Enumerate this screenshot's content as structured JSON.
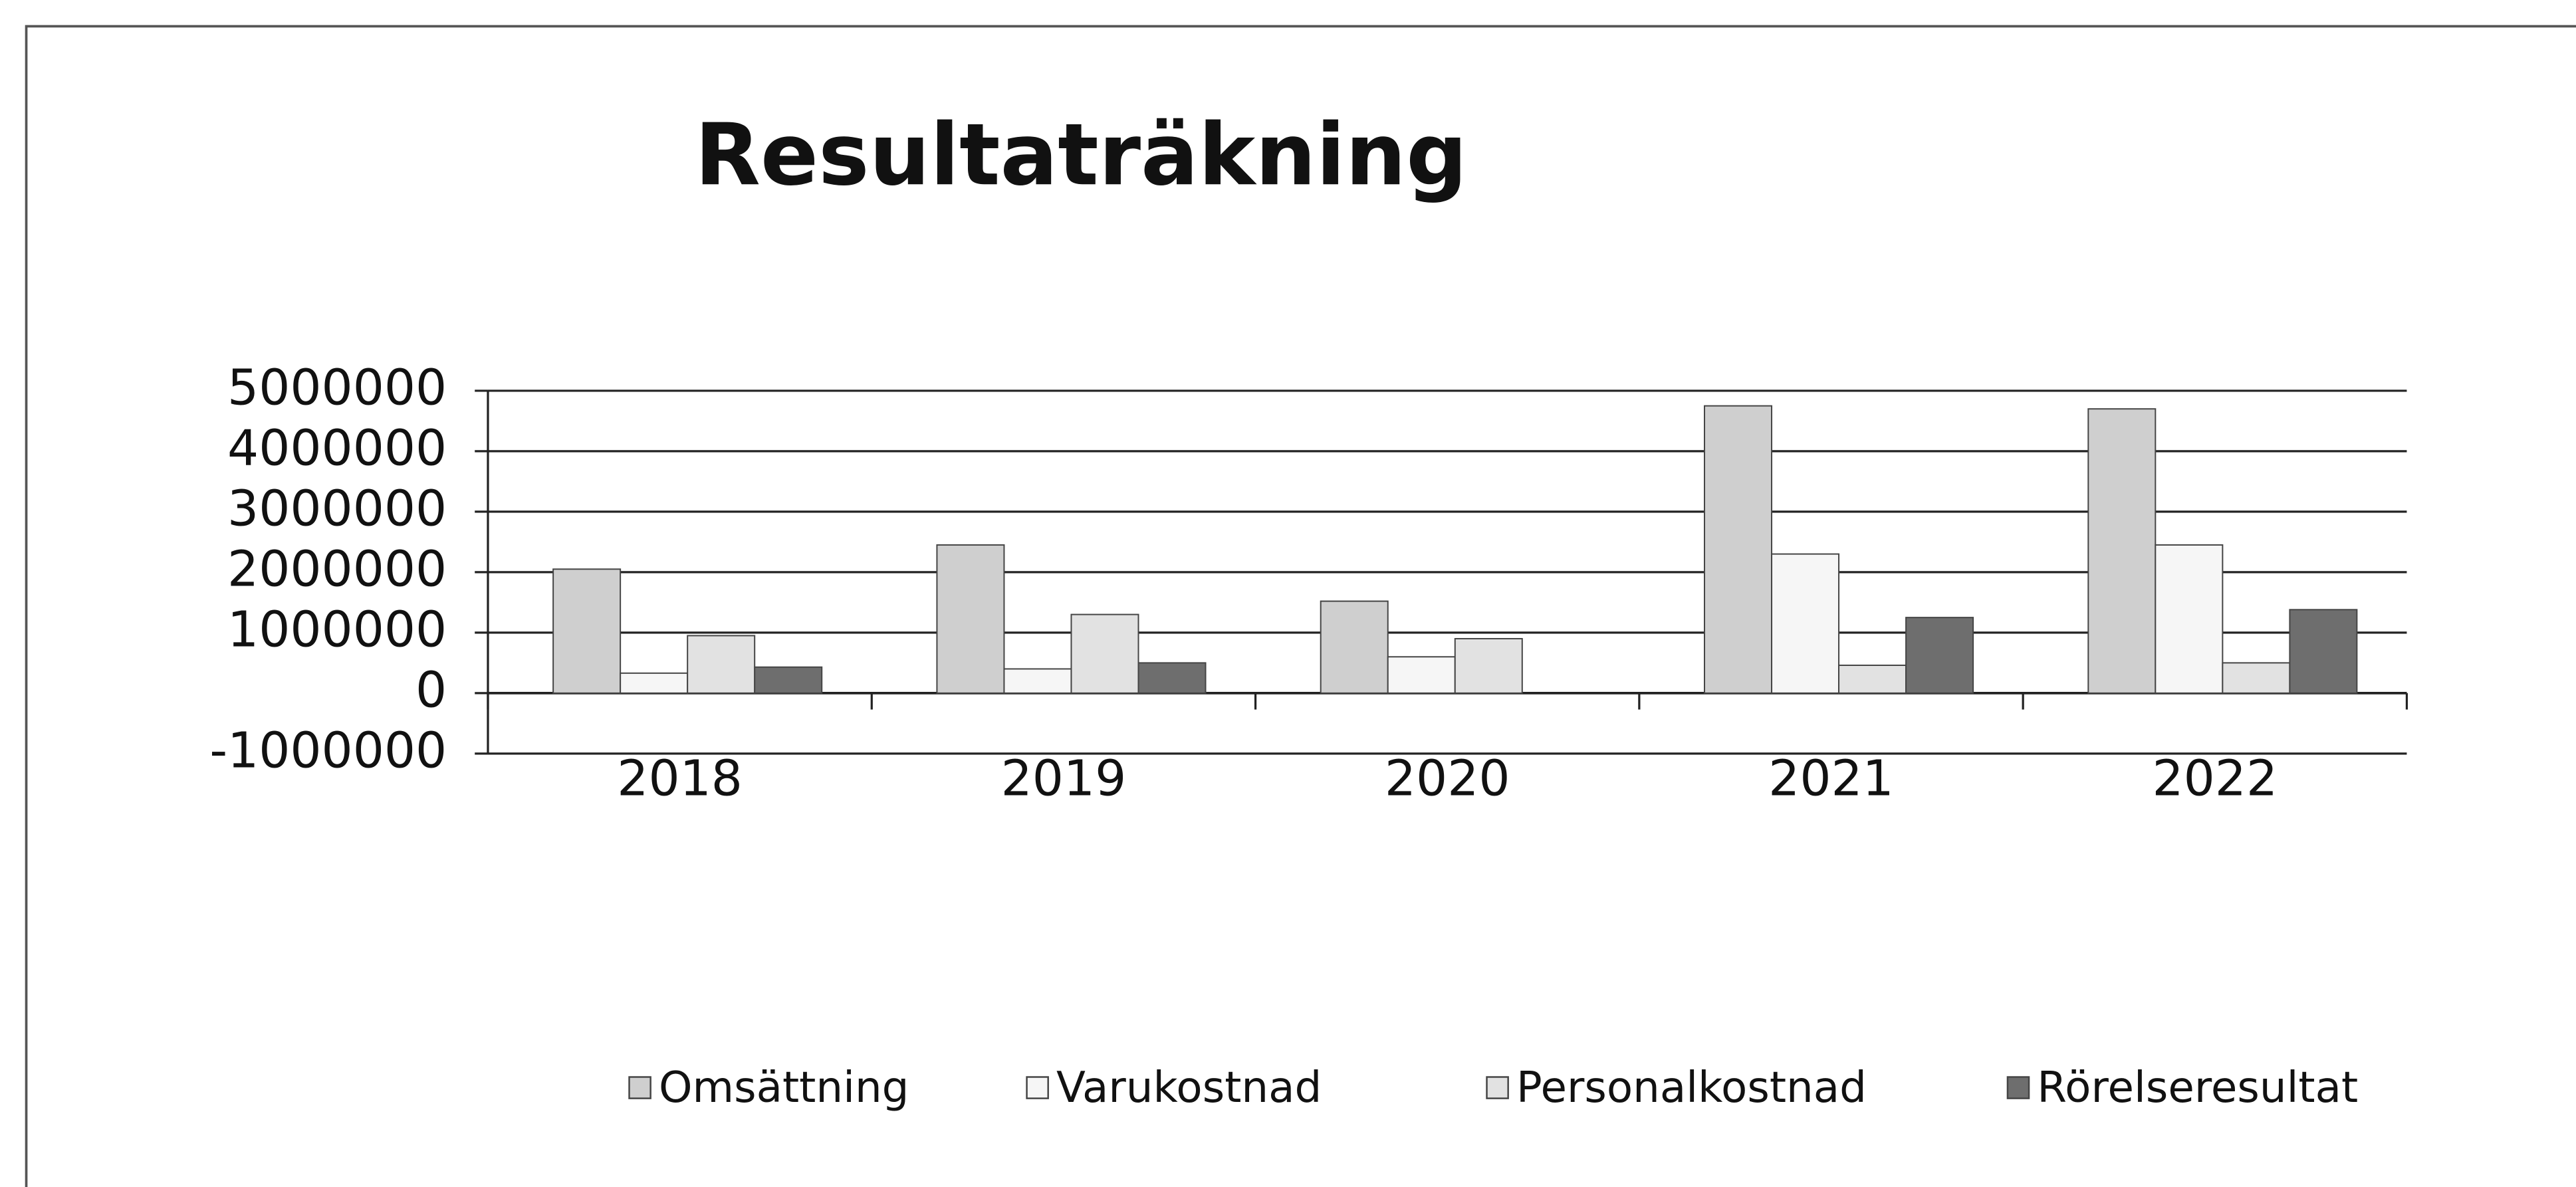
{
  "chart_data": {
    "type": "bar",
    "title": "Resultaträkning",
    "categories": [
      "2018",
      "2019",
      "2020",
      "2021",
      "2022"
    ],
    "series": [
      {
        "name": "Omsättning",
        "color": "#cfcfcf",
        "values": [
          2050000,
          2450000,
          1520000,
          4750000,
          4700000
        ]
      },
      {
        "name": "Varukostnad",
        "color": "#f6f6f6",
        "values": [
          330000,
          400000,
          600000,
          2300000,
          2450000
        ]
      },
      {
        "name": "Personalkostnad",
        "color": "#e2e2e2",
        "values": [
          950000,
          1300000,
          900000,
          460000,
          500000
        ]
      },
      {
        "name": "Rörelseresultat",
        "color": "#6e6e6e",
        "values": [
          430000,
          500000,
          0,
          1250000,
          1380000
        ]
      }
    ],
    "ylim": [
      -1000000,
      5000000
    ],
    "yticks": [
      -1000000,
      0,
      1000000,
      2000000,
      3000000,
      4000000,
      5000000
    ],
    "grid": true,
    "legend": "bottom"
  }
}
